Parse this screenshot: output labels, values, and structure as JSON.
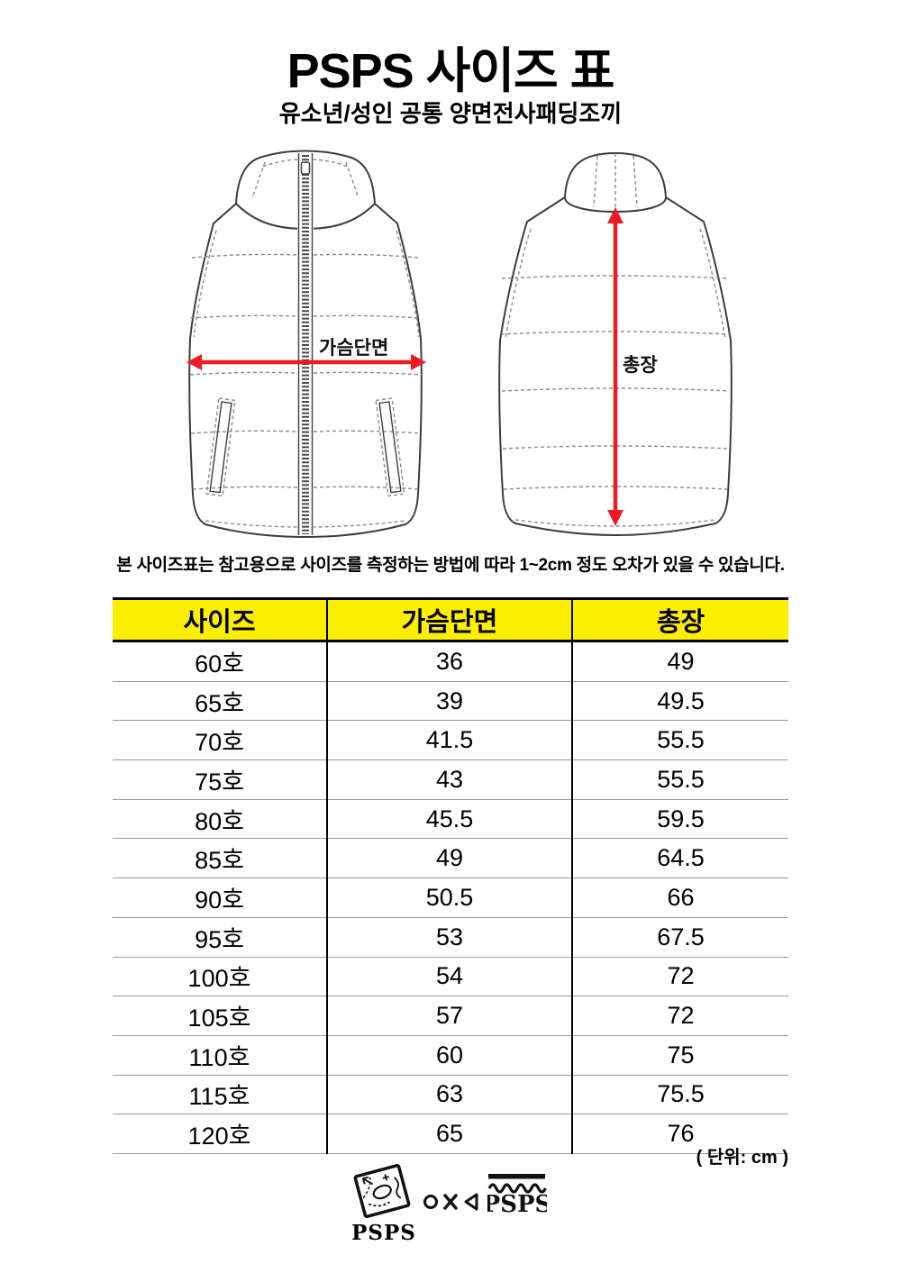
{
  "colors": {
    "header_yellow": "#FCEE00",
    "arrow_red": "#EC1B23",
    "ink": "#3D3D3D",
    "dash": "#8A8A8A"
  },
  "header": {
    "title": "PSPS 사이즈 표",
    "subtitle": "유소년/성인 공통 양면전사패딩조끼"
  },
  "diagram": {
    "front_label": "가슴단면",
    "back_label": "총장"
  },
  "note": "본 사이즈표는 참고용으로 사이즈를 측정하는 방법에 따라 1~2cm 정도 오차가 있을 수 있습니다.",
  "table": {
    "headers": [
      "사이즈",
      "가슴단면",
      "총장"
    ],
    "rows": [
      [
        "60호",
        "36",
        "49"
      ],
      [
        "65호",
        "39",
        "49.5"
      ],
      [
        "70호",
        "41.5",
        "55.5"
      ],
      [
        "75호",
        "43",
        "55.5"
      ],
      [
        "80호",
        "45.5",
        "59.5"
      ],
      [
        "85호",
        "49",
        "64.5"
      ],
      [
        "90호",
        "50.5",
        "66"
      ],
      [
        "95호",
        "53",
        "67.5"
      ],
      [
        "100호",
        "54",
        "72"
      ],
      [
        "105호",
        "57",
        "72"
      ],
      [
        "110호",
        "60",
        "75"
      ],
      [
        "115호",
        "63",
        "75.5"
      ],
      [
        "120호",
        "65",
        "76"
      ]
    ]
  },
  "unit_note": "( 단위: cm )",
  "footer": {
    "stamp_label": "PSPS",
    "wave_label": "PSPS"
  }
}
